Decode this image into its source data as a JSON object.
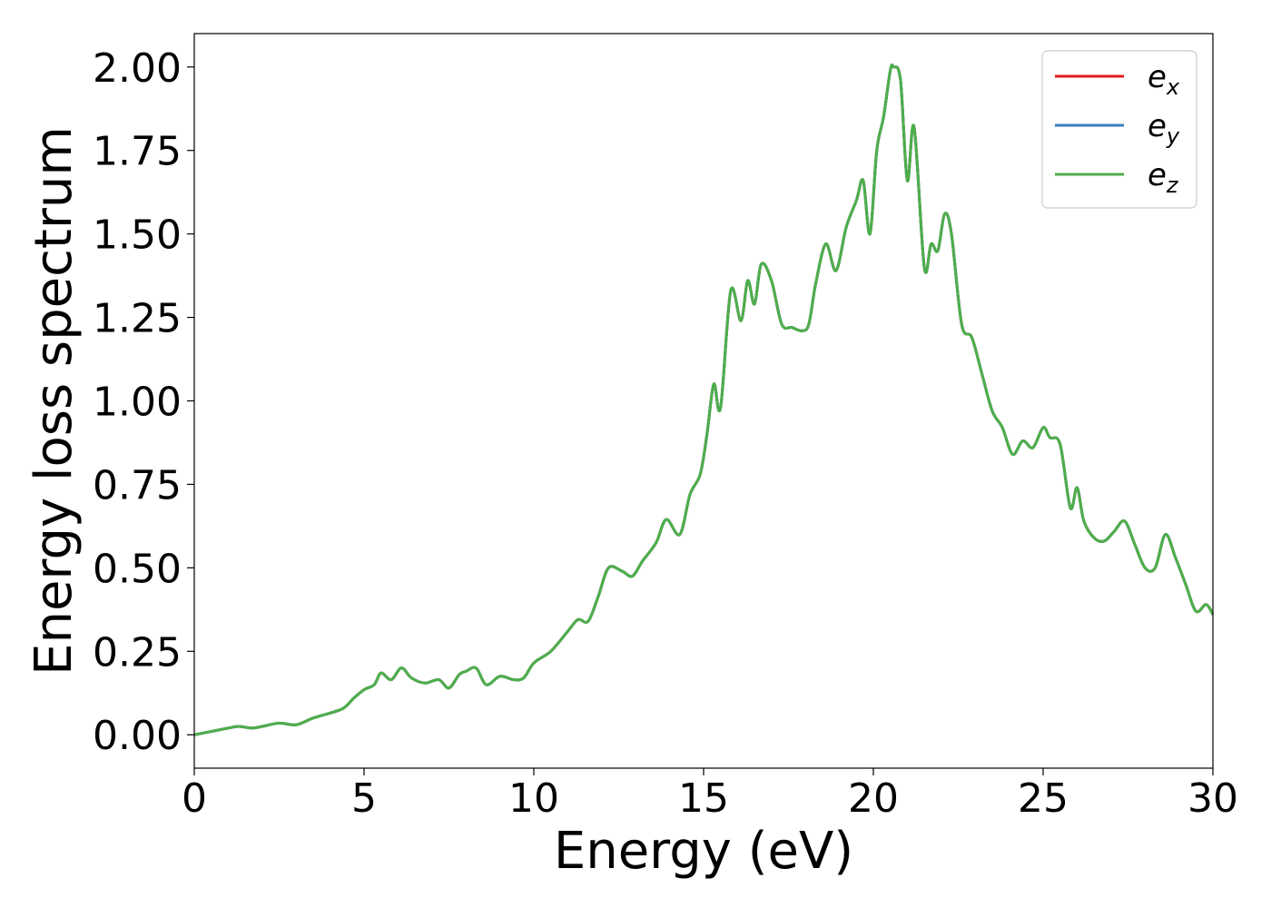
{
  "chart_data": {
    "type": "line",
    "title": "",
    "xlabel": "Energy (eV)",
    "ylabel": "Energy loss spectrum",
    "xlim": [
      0,
      30
    ],
    "ylim": [
      -0.1,
      2.1
    ],
    "xticks": [
      0,
      5,
      10,
      15,
      20,
      25,
      30
    ],
    "xtick_labels": [
      "0",
      "5",
      "10",
      "15",
      "20",
      "25",
      "30"
    ],
    "yticks": [
      0,
      0.25,
      0.5,
      0.75,
      1.0,
      1.25,
      1.5,
      1.75,
      2.0
    ],
    "ytick_labels": [
      "0.00",
      "0.25",
      "0.50",
      "0.75",
      "1.00",
      "1.25",
      "1.50",
      "1.75",
      "2.00"
    ],
    "grid": false,
    "legend_position": "top-right",
    "x": [
      0,
      0.5,
      1.0,
      1.3,
      1.7,
      2.0,
      2.5,
      3.0,
      3.5,
      4.0,
      4.4,
      4.7,
      5.0,
      5.3,
      5.5,
      5.8,
      6.1,
      6.4,
      6.8,
      7.2,
      7.5,
      7.8,
      8.0,
      8.3,
      8.6,
      9.0,
      9.4,
      9.7,
      10.0,
      10.5,
      11.0,
      11.3,
      11.6,
      11.9,
      12.2,
      12.6,
      12.9,
      13.2,
      13.6,
      13.9,
      14.3,
      14.6,
      14.9,
      15.1,
      15.3,
      15.5,
      15.8,
      16.1,
      16.3,
      16.5,
      16.7,
      17.0,
      17.3,
      17.6,
      17.9,
      18.1,
      18.3,
      18.6,
      18.9,
      19.2,
      19.5,
      19.7,
      19.9,
      20.1,
      20.3,
      20.5,
      20.6,
      20.8,
      21.0,
      21.2,
      21.5,
      21.7,
      21.9,
      22.1,
      22.3,
      22.6,
      22.9,
      23.2,
      23.5,
      23.8,
      24.1,
      24.4,
      24.7,
      25.0,
      25.2,
      25.5,
      25.8,
      26.0,
      26.2,
      26.5,
      26.8,
      27.1,
      27.4,
      27.7,
      28.0,
      28.3,
      28.6,
      28.9,
      29.2,
      29.5,
      29.8,
      30.0
    ],
    "series": [
      {
        "name": "e_x",
        "color": "#e41a1c",
        "values": [
          0.0,
          0.01,
          0.02,
          0.025,
          0.02,
          0.025,
          0.035,
          0.03,
          0.05,
          0.065,
          0.08,
          0.11,
          0.135,
          0.15,
          0.185,
          0.165,
          0.2,
          0.17,
          0.155,
          0.165,
          0.14,
          0.18,
          0.19,
          0.2,
          0.15,
          0.175,
          0.165,
          0.17,
          0.215,
          0.25,
          0.31,
          0.345,
          0.34,
          0.415,
          0.5,
          0.49,
          0.475,
          0.52,
          0.575,
          0.645,
          0.6,
          0.72,
          0.78,
          0.9,
          1.05,
          0.98,
          1.33,
          1.24,
          1.36,
          1.29,
          1.41,
          1.36,
          1.23,
          1.22,
          1.21,
          1.23,
          1.35,
          1.47,
          1.39,
          1.52,
          1.6,
          1.66,
          1.5,
          1.75,
          1.85,
          1.99,
          2.0,
          1.96,
          1.66,
          1.82,
          1.4,
          1.47,
          1.45,
          1.56,
          1.5,
          1.23,
          1.19,
          1.08,
          0.97,
          0.92,
          0.84,
          0.88,
          0.86,
          0.92,
          0.89,
          0.87,
          0.68,
          0.74,
          0.64,
          0.59,
          0.58,
          0.61,
          0.64,
          0.57,
          0.5,
          0.5,
          0.6,
          0.53,
          0.45,
          0.37,
          0.39,
          0.36
        ]
      },
      {
        "name": "e_y",
        "color": "#377eb8",
        "values": [
          0.0,
          0.01,
          0.02,
          0.025,
          0.02,
          0.025,
          0.035,
          0.03,
          0.05,
          0.065,
          0.08,
          0.11,
          0.135,
          0.15,
          0.185,
          0.165,
          0.2,
          0.17,
          0.155,
          0.165,
          0.14,
          0.18,
          0.19,
          0.2,
          0.15,
          0.175,
          0.165,
          0.17,
          0.215,
          0.25,
          0.31,
          0.345,
          0.34,
          0.415,
          0.5,
          0.49,
          0.475,
          0.52,
          0.575,
          0.645,
          0.6,
          0.72,
          0.78,
          0.9,
          1.05,
          0.98,
          1.33,
          1.24,
          1.36,
          1.29,
          1.41,
          1.36,
          1.23,
          1.22,
          1.21,
          1.23,
          1.35,
          1.47,
          1.39,
          1.52,
          1.6,
          1.66,
          1.5,
          1.75,
          1.85,
          1.99,
          2.0,
          1.96,
          1.66,
          1.82,
          1.4,
          1.47,
          1.45,
          1.56,
          1.5,
          1.23,
          1.19,
          1.08,
          0.97,
          0.92,
          0.84,
          0.88,
          0.86,
          0.92,
          0.89,
          0.87,
          0.68,
          0.74,
          0.64,
          0.59,
          0.58,
          0.61,
          0.64,
          0.57,
          0.5,
          0.5,
          0.6,
          0.53,
          0.45,
          0.37,
          0.39,
          0.36
        ]
      },
      {
        "name": "e_z",
        "color": "#4daf4a",
        "values": [
          0.0,
          0.01,
          0.02,
          0.025,
          0.02,
          0.025,
          0.035,
          0.03,
          0.05,
          0.065,
          0.08,
          0.11,
          0.135,
          0.15,
          0.185,
          0.165,
          0.2,
          0.17,
          0.155,
          0.165,
          0.14,
          0.18,
          0.19,
          0.2,
          0.15,
          0.175,
          0.165,
          0.17,
          0.215,
          0.25,
          0.31,
          0.345,
          0.34,
          0.415,
          0.5,
          0.49,
          0.475,
          0.52,
          0.575,
          0.645,
          0.6,
          0.72,
          0.78,
          0.9,
          1.05,
          0.98,
          1.33,
          1.24,
          1.36,
          1.29,
          1.41,
          1.36,
          1.23,
          1.22,
          1.21,
          1.23,
          1.35,
          1.47,
          1.39,
          1.52,
          1.6,
          1.66,
          1.5,
          1.75,
          1.85,
          1.99,
          2.0,
          1.96,
          1.66,
          1.82,
          1.4,
          1.47,
          1.45,
          1.56,
          1.5,
          1.23,
          1.19,
          1.08,
          0.97,
          0.92,
          0.84,
          0.88,
          0.86,
          0.92,
          0.89,
          0.87,
          0.68,
          0.74,
          0.64,
          0.59,
          0.58,
          0.61,
          0.64,
          0.57,
          0.5,
          0.5,
          0.6,
          0.53,
          0.45,
          0.37,
          0.39,
          0.36
        ]
      }
    ],
    "legend": [
      {
        "base": "e",
        "sub": "x"
      },
      {
        "base": "e",
        "sub": "y"
      },
      {
        "base": "e",
        "sub": "z"
      }
    ]
  }
}
